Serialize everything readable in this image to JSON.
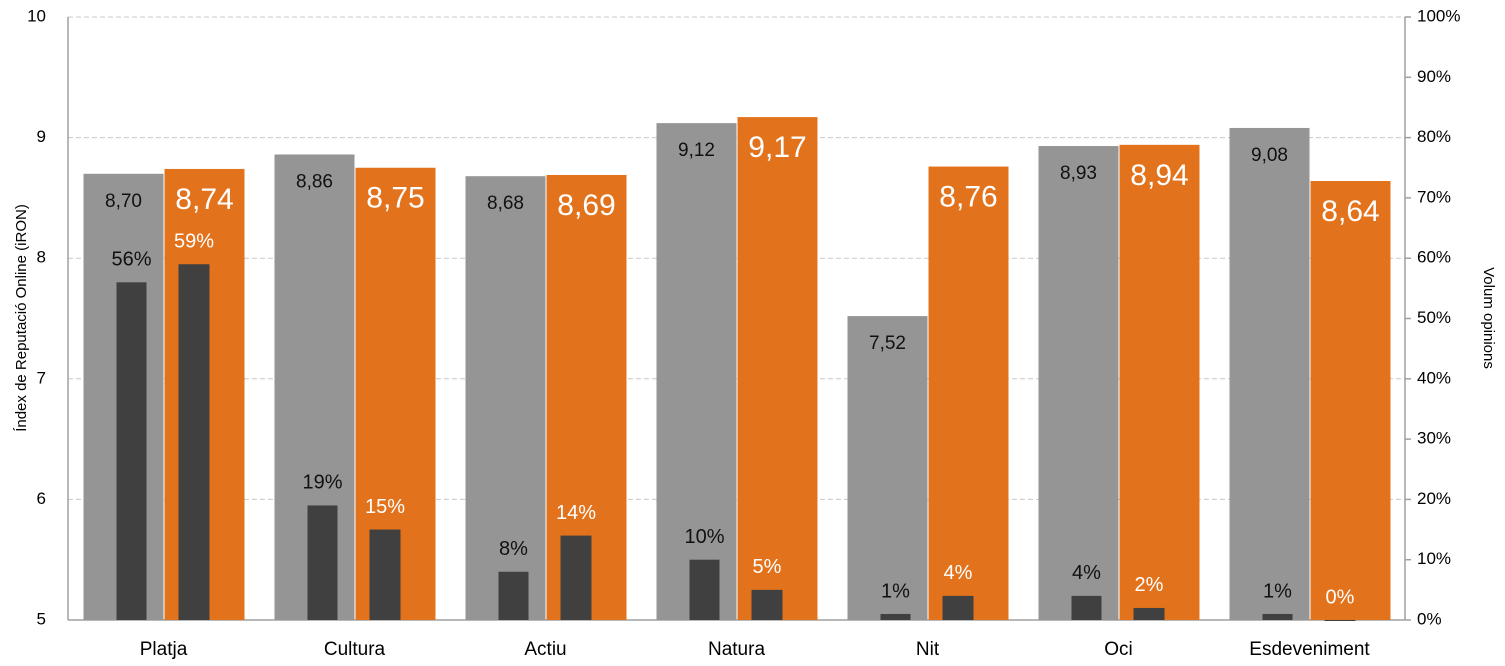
{
  "chart_data": {
    "type": "bar",
    "y_label": "Índex de Reputació Online (iRON)",
    "y2_label": "Volum opinions",
    "categories": [
      "Platja",
      "Cultura",
      "Actiu",
      "Natura",
      "Nit",
      "Oci",
      "Esdeveniment"
    ],
    "series": [
      {
        "color": "#959595",
        "values": [
          8.7,
          8.86,
          8.68,
          9.12,
          7.52,
          8.93,
          9.08
        ],
        "value_labels": [
          "8,70",
          "8,86",
          "8,68",
          "9,12",
          "7,52",
          "8,93",
          "9,08"
        ]
      },
      {
        "color": "#e2731c",
        "values": [
          8.74,
          8.75,
          8.69,
          9.17,
          8.76,
          8.94,
          8.64
        ],
        "value_labels": [
          "8,74",
          "8,75",
          "8,69",
          "9,17",
          "8,76",
          "8,94",
          "8,64"
        ]
      },
      {
        "color": "#404040",
        "axis": "y2",
        "values": [
          56,
          19,
          8,
          10,
          1,
          4,
          1
        ],
        "value_labels": [
          "56%",
          "19%",
          "8%",
          "10%",
          "1%",
          "4%",
          "1%"
        ]
      },
      {
        "color": "#404040",
        "axis": "y2",
        "values": [
          59,
          15,
          14,
          5,
          4,
          2,
          0
        ],
        "value_labels": [
          "59%",
          "15%",
          "14%",
          "5%",
          "4%",
          "2%",
          "0%"
        ]
      }
    ],
    "ylim": [
      5,
      10
    ],
    "yticks": [
      5,
      6,
      7,
      8,
      9,
      10
    ],
    "y2lim": [
      0,
      100
    ],
    "y2ticks": [
      {
        "value": 0,
        "label": "0%"
      },
      {
        "value": 10,
        "label": "10%"
      },
      {
        "value": 20,
        "label": "20%"
      },
      {
        "value": 30,
        "label": "30%"
      },
      {
        "value": 40,
        "label": "40%"
      },
      {
        "value": 50,
        "label": "50%"
      },
      {
        "value": 60,
        "label": "60%"
      },
      {
        "value": 70,
        "label": "70%"
      },
      {
        "value": 80,
        "label": "80%"
      },
      {
        "value": 90,
        "label": "90%"
      },
      {
        "value": 100,
        "label": "100%"
      }
    ],
    "grid": true
  }
}
